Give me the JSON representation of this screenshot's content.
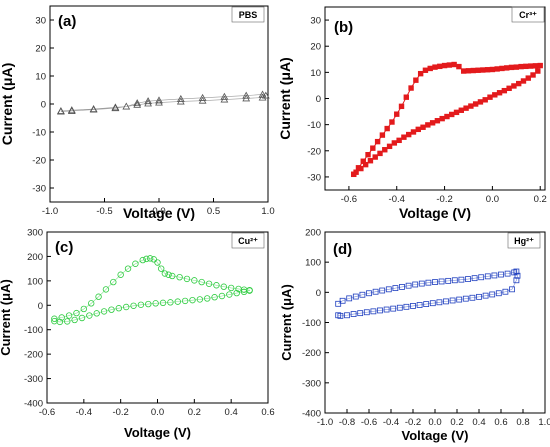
{
  "chart_data": [
    {
      "type": "scatter",
      "panel_label": "(a)",
      "legend": "PBS",
      "xlabel": "Voltage (V)",
      "ylabel": "Current (μA)",
      "xlim": [
        -1.0,
        1.0
      ],
      "ylim": [
        -35,
        35
      ],
      "xticks": [
        "-1.0",
        "-0.5",
        "0.0",
        "0.5",
        "1.0"
      ],
      "yticks": [
        "30",
        "20",
        "10",
        "0",
        "-10",
        "-20",
        "-30"
      ],
      "marker": "open-triangle",
      "color": "#555555",
      "series": [
        {
          "x": [
            -0.9,
            -0.8,
            -0.6,
            -0.4,
            -0.3,
            -0.2,
            -0.1,
            0.0,
            0.2,
            0.4,
            0.6,
            0.8,
            0.95,
            0.98,
            0.95,
            0.8,
            0.6,
            0.4,
            0.2,
            0.0,
            -0.1,
            -0.2,
            -0.4,
            -0.6,
            -0.8,
            -0.9
          ],
          "y": [
            -2.5,
            -2.2,
            -1.8,
            -1.2,
            -0.9,
            0.3,
            1.0,
            1.3,
            1.8,
            2.2,
            2.6,
            3.0,
            3.4,
            3.0,
            2.3,
            2.0,
            1.6,
            1.2,
            0.9,
            0.5,
            0.2,
            -0.3,
            -1.5,
            -2.0,
            -2.5,
            -2.7
          ]
        }
      ]
    },
    {
      "type": "line",
      "panel_label": "(b)",
      "legend": "Cr³⁺",
      "xlabel": "Voltage (V)",
      "ylabel": "Current (μA)",
      "xlim": [
        -0.7,
        0.22
      ],
      "ylim": [
        -35,
        35
      ],
      "xticks": [
        "-0.6",
        "-0.4",
        "-0.2",
        "0.0",
        "0.2"
      ],
      "yticks": [
        "30",
        "20",
        "10",
        "0",
        "-10",
        "-20",
        "-30"
      ],
      "marker": "filled-square",
      "color": "#e31a1c",
      "series": [
        {
          "x": [
            -0.58,
            -0.56,
            -0.54,
            -0.52,
            -0.5,
            -0.48,
            -0.46,
            -0.44,
            -0.42,
            -0.4,
            -0.38,
            -0.36,
            -0.34,
            -0.32,
            -0.3,
            -0.28,
            -0.26,
            -0.24,
            -0.22,
            -0.2,
            -0.18,
            -0.16,
            -0.14,
            -0.12,
            -0.1,
            -0.08,
            -0.06,
            -0.04,
            -0.02,
            0.0,
            0.02,
            0.04,
            0.06,
            0.08,
            0.1,
            0.12,
            0.14,
            0.16,
            0.18,
            0.2,
            0.19,
            0.17,
            0.15,
            0.13,
            0.11,
            0.09,
            0.07,
            0.05,
            0.03,
            0.01,
            -0.01,
            -0.03,
            -0.05,
            -0.07,
            -0.09,
            -0.11,
            -0.13,
            -0.15,
            -0.17,
            -0.19,
            -0.21,
            -0.23,
            -0.25,
            -0.27,
            -0.29,
            -0.31,
            -0.33,
            -0.35,
            -0.37,
            -0.39,
            -0.41,
            -0.43,
            -0.45,
            -0.47,
            -0.49,
            -0.51,
            -0.53,
            -0.55,
            -0.57,
            -0.58
          ],
          "y": [
            -29,
            -26.5,
            -24,
            -21.5,
            -19,
            -16.5,
            -14,
            -11.5,
            -9,
            -6,
            -3,
            0.5,
            4,
            7,
            9.5,
            10.8,
            11.5,
            12,
            12.3,
            12.6,
            12.8,
            13,
            12.2,
            10.5,
            10.6,
            10.7,
            10.8,
            10.9,
            11,
            11.1,
            11.3,
            11.5,
            11.7,
            11.9,
            12,
            12.2,
            12.3,
            12.4,
            12.5,
            12.6,
            10.5,
            9,
            7.8,
            6.7,
            5.7,
            4.8,
            3.9,
            3.0,
            2.2,
            1.4,
            0.5,
            -0.5,
            -1.3,
            -2.1,
            -2.9,
            -3.7,
            -4.5,
            -5.3,
            -6.1,
            -6.9,
            -7.7,
            -8.5,
            -9.3,
            -10.1,
            -11,
            -11.8,
            -12.8,
            -13.8,
            -14.8,
            -16,
            -17,
            -18.3,
            -19.6,
            -21,
            -22.4,
            -23.8,
            -25.3,
            -26.8,
            -28.2,
            -29
          ]
        }
      ]
    },
    {
      "type": "scatter",
      "panel_label": "(c)",
      "legend": "Cu²⁺",
      "xlabel": "Voltage (V)",
      "ylabel": "Current (μA)",
      "xlim": [
        -0.6,
        0.6
      ],
      "ylim": [
        -400,
        300
      ],
      "xticks": [
        "-0.6",
        "-0.4",
        "-0.2",
        "0.0",
        "0.2",
        "0.4",
        "0.6"
      ],
      "yticks": [
        "300",
        "200",
        "100",
        "0",
        "-100",
        "-200",
        "-300",
        "-400"
      ],
      "marker": "open-circle",
      "color": "#2ecc40",
      "series": [
        {
          "x": [
            -0.56,
            -0.52,
            -0.48,
            -0.44,
            -0.4,
            -0.36,
            -0.32,
            -0.28,
            -0.24,
            -0.2,
            -0.16,
            -0.12,
            -0.08,
            -0.06,
            -0.04,
            -0.02,
            0.0,
            0.02,
            0.04,
            0.06,
            0.08,
            0.12,
            0.16,
            0.2,
            0.24,
            0.28,
            0.32,
            0.36,
            0.4,
            0.44,
            0.47,
            0.5,
            0.5,
            0.47,
            0.43,
            0.39,
            0.35,
            0.31,
            0.27,
            0.23,
            0.19,
            0.15,
            0.11,
            0.07,
            0.03,
            -0.01,
            -0.05,
            -0.09,
            -0.13,
            -0.17,
            -0.21,
            -0.25,
            -0.29,
            -0.33,
            -0.37,
            -0.41,
            -0.45,
            -0.49,
            -0.53,
            -0.56
          ],
          "y": [
            -55,
            -50,
            -42,
            -32,
            -15,
            8,
            35,
            65,
            95,
            125,
            150,
            170,
            185,
            190,
            192,
            188,
            175,
            150,
            130,
            125,
            120,
            115,
            108,
            102,
            95,
            88,
            82,
            76,
            71,
            67,
            64,
            62,
            60,
            55,
            50,
            44,
            38,
            33,
            28,
            24,
            21,
            18,
            15,
            12,
            10,
            8,
            5,
            2,
            -2,
            -7,
            -12,
            -18,
            -25,
            -33,
            -42,
            -52,
            -60,
            -66,
            -68,
            -65
          ]
        }
      ]
    },
    {
      "type": "scatter",
      "panel_label": "(d)",
      "legend": "Hg²⁺",
      "xlabel": "Voltage (V)",
      "ylabel": "Current (μA)",
      "xlim": [
        -1.0,
        1.0
      ],
      "ylim": [
        -400,
        200
      ],
      "xticks": [
        "-1.0",
        "-0.8",
        "-0.6",
        "-0.4",
        "-0.2",
        "0.0",
        "0.2",
        "0.4",
        "0.6",
        "0.8",
        "1.0"
      ],
      "yticks": [
        "200",
        "100",
        "0",
        "-100",
        "-200",
        "-300",
        "-400"
      ],
      "marker": "open-square",
      "color": "#1f3fbf",
      "series": [
        {
          "x": [
            -0.88,
            -0.84,
            -0.78,
            -0.72,
            -0.66,
            -0.6,
            -0.54,
            -0.48,
            -0.42,
            -0.36,
            -0.3,
            -0.24,
            -0.18,
            -0.12,
            -0.06,
            0.0,
            0.06,
            0.12,
            0.18,
            0.24,
            0.3,
            0.36,
            0.42,
            0.48,
            0.54,
            0.6,
            0.66,
            0.72,
            0.74,
            0.75,
            0.74,
            0.7,
            0.64,
            0.58,
            0.52,
            0.46,
            0.4,
            0.34,
            0.28,
            0.22,
            0.16,
            0.1,
            0.04,
            -0.02,
            -0.08,
            -0.14,
            -0.2,
            -0.26,
            -0.32,
            -0.38,
            -0.44,
            -0.5,
            -0.56,
            -0.62,
            -0.68,
            -0.74,
            -0.8,
            -0.86,
            -0.88
          ],
          "y": [
            -38,
            -28,
            -20,
            -14,
            -8,
            -3,
            2,
            6,
            10,
            14,
            18,
            22,
            26,
            29,
            32,
            34,
            36,
            38,
            40,
            42,
            44,
            47,
            50,
            53,
            56,
            59,
            62,
            66,
            69,
            55,
            40,
            10,
            2,
            -3,
            -7,
            -11,
            -15,
            -18,
            -21,
            -24,
            -27,
            -30,
            -33,
            -36,
            -39,
            -42,
            -45,
            -48,
            -51,
            -54,
            -57,
            -60,
            -63,
            -66,
            -69,
            -72,
            -76,
            -78,
            -76
          ]
        }
      ]
    }
  ]
}
